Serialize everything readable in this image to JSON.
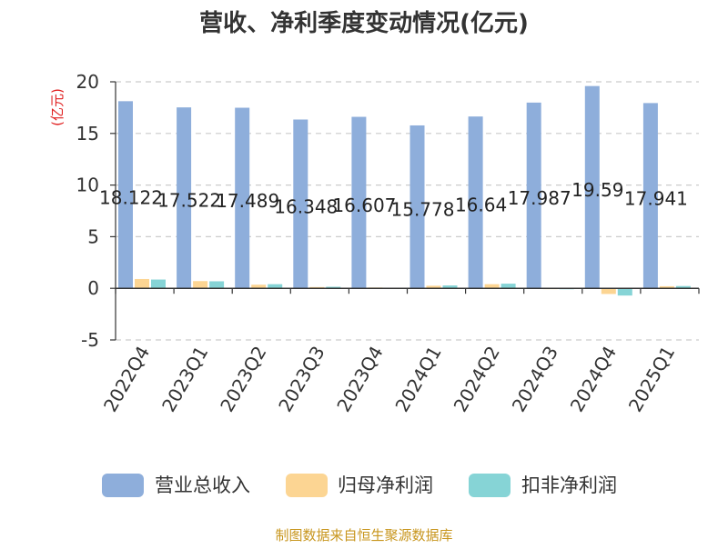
{
  "chart_data": {
    "type": "bar",
    "title": "营收、净利季度变动情况(亿元)",
    "ylabel": "(亿元)",
    "xlabel": "",
    "ylim": [
      -5,
      20
    ],
    "yticks": [
      -5,
      0,
      5,
      10,
      15,
      20
    ],
    "grid": true,
    "legend_position": "bottom",
    "categories": [
      "2022Q4",
      "2023Q1",
      "2023Q2",
      "2023Q3",
      "2023Q4",
      "2024Q1",
      "2024Q2",
      "2024Q3",
      "2024Q4",
      "2025Q1"
    ],
    "series": [
      {
        "name": "营业总收入",
        "color": "#8eaedb",
        "values": [
          18.122,
          17.522,
          17.489,
          16.348,
          16.607,
          15.778,
          16.64,
          17.987,
          19.59,
          17.941
        ],
        "data_labels": [
          "18.122",
          "17.522",
          "17.489",
          "16.348",
          "16.607",
          "15.778",
          "16.64",
          "17.987",
          "19.59",
          "17.941"
        ]
      },
      {
        "name": "归母净利润",
        "color": "#fcd593",
        "values": [
          0.9,
          0.7,
          0.35,
          0.12,
          0.08,
          0.25,
          0.4,
          0.05,
          -0.55,
          0.2
        ]
      },
      {
        "name": "扣非净利润",
        "color": "#86d4d6",
        "values": [
          0.85,
          0.68,
          0.4,
          0.15,
          0.06,
          0.28,
          0.45,
          0.04,
          -0.7,
          0.22
        ]
      }
    ]
  },
  "source": "制图数据来自恒生聚源数据库",
  "colors": {
    "title": "#333333",
    "ylabel": "#e02020",
    "axis": "#333333",
    "grid": "#cccccc",
    "source": "#c8961e"
  }
}
